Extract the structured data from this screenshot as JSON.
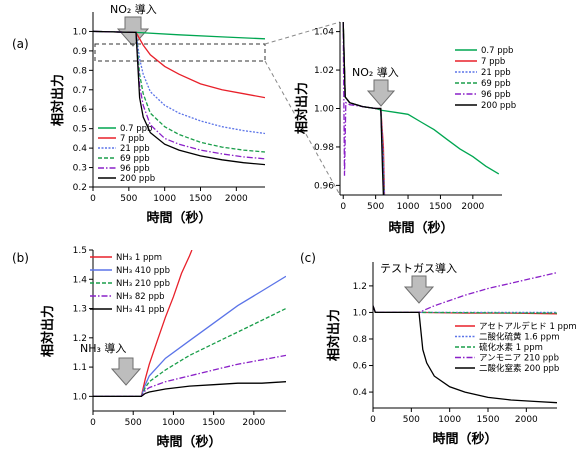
{
  "panel_labels": {
    "a": "(a)",
    "b": "(b)",
    "c": "(c)"
  },
  "annotations": {
    "no2_main": "NO₂ 導入",
    "no2_zoom": "NO₂ 導入",
    "nh3": "NH₃ 導入",
    "testgas": "テストガス導入"
  },
  "colors": {
    "green": "#00a651",
    "red": "#e8202a",
    "blue": "#5b74e8",
    "teal": "#1a9e4a",
    "purple": "#8a20c8",
    "black": "#000000"
  },
  "chart_data": [
    {
      "id": "a_main",
      "type": "line",
      "xlabel": "時間（秒）",
      "ylabel": "相対出力",
      "xlim": [
        0,
        2400
      ],
      "ylim": [
        0.2,
        1.1
      ],
      "xticks": [
        0,
        500,
        1000,
        1500,
        2000
      ],
      "yticks": [
        0.2,
        0.3,
        0.4,
        0.5,
        0.6,
        0.7,
        0.8,
        0.9,
        1.0
      ],
      "injection_time": 600,
      "series": [
        {
          "name": "0.7 ppb",
          "color": "#00a651",
          "dash": "",
          "x": [
            0,
            600,
            1200,
            1800,
            2400
          ],
          "y": [
            1.0,
            0.995,
            0.983,
            0.972,
            0.962
          ]
        },
        {
          "name": "7 ppb",
          "color": "#e8202a",
          "dash": "",
          "x": [
            0,
            600,
            700,
            800,
            1000,
            1200,
            1500,
            1800,
            2100,
            2400
          ],
          "y": [
            1.0,
            0.995,
            0.93,
            0.88,
            0.82,
            0.78,
            0.73,
            0.7,
            0.68,
            0.66
          ]
        },
        {
          "name": "21 ppb",
          "color": "#5b74e8",
          "dash": "2,1.5",
          "x": [
            0,
            600,
            650,
            700,
            800,
            1000,
            1200,
            1500,
            1800,
            2100,
            2400
          ],
          "y": [
            1.0,
            0.995,
            0.86,
            0.78,
            0.69,
            0.62,
            0.58,
            0.54,
            0.51,
            0.49,
            0.475
          ]
        },
        {
          "name": "69 ppb",
          "color": "#1a9e4a",
          "dash": "4,2",
          "x": [
            0,
            600,
            650,
            700,
            800,
            1000,
            1200,
            1500,
            1800,
            2100,
            2400
          ],
          "y": [
            1.0,
            0.995,
            0.78,
            0.68,
            0.58,
            0.51,
            0.47,
            0.43,
            0.405,
            0.39,
            0.38
          ]
        },
        {
          "name": "96 ppb",
          "color": "#8a20c8",
          "dash": "6,2,1.5,2",
          "x": [
            0,
            600,
            650,
            700,
            800,
            1000,
            1200,
            1500,
            1800,
            2100,
            2400
          ],
          "y": [
            1.0,
            0.995,
            0.72,
            0.62,
            0.52,
            0.45,
            0.42,
            0.39,
            0.37,
            0.355,
            0.345
          ]
        },
        {
          "name": "200 ppb",
          "color": "#000000",
          "dash": "",
          "x": [
            0,
            600,
            650,
            700,
            800,
            1000,
            1200,
            1500,
            1800,
            2100,
            2400
          ],
          "y": [
            1.0,
            0.995,
            0.66,
            0.56,
            0.48,
            0.42,
            0.39,
            0.36,
            0.34,
            0.325,
            0.315
          ]
        }
      ]
    },
    {
      "id": "a_zoom",
      "type": "line",
      "xlabel": "時間（秒）",
      "ylabel": "相対出力",
      "xlim": [
        -50,
        2450
      ],
      "ylim": [
        0.955,
        1.045
      ],
      "xticks": [
        0,
        500,
        1000,
        1500,
        2000
      ],
      "yticks": [
        0.96,
        0.98,
        1.0,
        1.02,
        1.04
      ],
      "series": [
        {
          "name": "0.7 ppb",
          "color": "#00a651",
          "dash": "",
          "x": [
            0,
            30,
            100,
            300,
            500,
            600,
            800,
            1000,
            1200,
            1400,
            1600,
            1800,
            2000,
            2200,
            2400
          ],
          "y": [
            1.045,
            1.006,
            1.003,
            1.001,
            1.0,
            0.999,
            0.998,
            0.997,
            0.993,
            0.989,
            0.984,
            0.979,
            0.975,
            0.97,
            0.966
          ]
        },
        {
          "name": "7 ppb",
          "color": "#e8202a",
          "dash": "",
          "x": [
            0,
            30,
            100,
            300,
            500,
            580,
            620,
            640
          ],
          "y": [
            1.045,
            1.006,
            1.003,
            1.001,
            1.0,
            1.0,
            0.98,
            0.95
          ]
        },
        {
          "name": "21 ppb",
          "color": "#5b74e8",
          "dash": "2,1.5",
          "x": [
            0,
            30,
            100,
            300,
            500,
            580,
            620,
            640
          ],
          "y": [
            1.045,
            1.006,
            1.003,
            1.001,
            1.0,
            1.0,
            0.975,
            0.95
          ]
        },
        {
          "name": "69 ppb",
          "color": "#1a9e4a",
          "dash": "4,2",
          "x": [
            0,
            30,
            100,
            300,
            500,
            580,
            615,
            635
          ],
          "y": [
            1.045,
            1.006,
            1.003,
            1.001,
            1.0,
            1.0,
            0.97,
            0.95
          ]
        },
        {
          "name": "96 ppb",
          "color": "#8a20c8",
          "dash": "6,2,1.5,2",
          "x": [
            0,
            20,
            40,
            100,
            300,
            500,
            580,
            610,
            630
          ],
          "y": [
            1.045,
            0.965,
            1.003,
            1.002,
            1.001,
            1.0,
            1.0,
            0.97,
            0.95
          ]
        },
        {
          "name": "200 ppb",
          "color": "#000000",
          "dash": "",
          "x": [
            0,
            30,
            100,
            300,
            500,
            580,
            605,
            625
          ],
          "y": [
            1.045,
            1.006,
            1.003,
            1.001,
            1.0,
            1.0,
            0.97,
            0.95
          ]
        }
      ]
    },
    {
      "id": "b",
      "type": "line",
      "xlabel": "時間（秒）",
      "ylabel": "相対出力",
      "xlim": [
        0,
        2400
      ],
      "ylim": [
        0.95,
        1.5
      ],
      "xticks": [
        0,
        500,
        1000,
        1500,
        2000
      ],
      "yticks": [
        1.0,
        1.1,
        1.2,
        1.3,
        1.4,
        1.5
      ],
      "series": [
        {
          "name": "NH₃ 1 ppm",
          "color": "#e8202a",
          "dash": "",
          "x": [
            0,
            600,
            650,
            700,
            800,
            900,
            1000,
            1100,
            1200,
            1230
          ],
          "y": [
            1.0,
            1.0,
            1.06,
            1.11,
            1.19,
            1.27,
            1.34,
            1.42,
            1.48,
            1.5
          ]
        },
        {
          "name": "NH₃ 410 ppb",
          "color": "#5b74e8",
          "dash": "",
          "x": [
            0,
            600,
            650,
            700,
            900,
            1200,
            1500,
            1800,
            2100,
            2400
          ],
          "y": [
            1.0,
            1.0,
            1.04,
            1.07,
            1.13,
            1.19,
            1.25,
            1.31,
            1.36,
            1.41
          ]
        },
        {
          "name": "NH₃ 210 ppb",
          "color": "#1a9e4a",
          "dash": "4,2",
          "x": [
            0,
            600,
            650,
            700,
            900,
            1200,
            1500,
            1800,
            2100,
            2400
          ],
          "y": [
            1.0,
            1.0,
            1.03,
            1.05,
            1.09,
            1.14,
            1.18,
            1.22,
            1.26,
            1.3
          ]
        },
        {
          "name": "NH₃ 82 ppb",
          "color": "#8a20c8",
          "dash": "6,2,1.5,2",
          "x": [
            0,
            600,
            650,
            700,
            900,
            1200,
            1500,
            1800,
            2100,
            2400
          ],
          "y": [
            1.0,
            1.0,
            1.02,
            1.03,
            1.05,
            1.07,
            1.09,
            1.11,
            1.125,
            1.14
          ]
        },
        {
          "name": "NH₃ 41 ppb",
          "color": "#000000",
          "dash": "",
          "x": [
            0,
            600,
            650,
            700,
            900,
            1200,
            1500,
            1800,
            2100,
            2400
          ],
          "y": [
            1.0,
            1.0,
            1.01,
            1.015,
            1.025,
            1.035,
            1.04,
            1.045,
            1.045,
            1.05
          ]
        }
      ]
    },
    {
      "id": "c",
      "type": "line",
      "xlabel": "時間（秒）",
      "ylabel": "相対出力",
      "xlim": [
        0,
        2400
      ],
      "ylim": [
        0.28,
        1.38
      ],
      "xticks": [
        0,
        500,
        1000,
        1500,
        2000
      ],
      "yticks": [
        0.4,
        0.6,
        0.8,
        1.0,
        1.2
      ],
      "series": [
        {
          "name": "アセトアルデヒド 1 ppm",
          "color": "#e8202a",
          "dash": "",
          "x": [
            0,
            30,
            100,
            600,
            1200,
            1800,
            2400
          ],
          "y": [
            1.05,
            1.0,
            1.0,
            1.0,
            0.995,
            0.995,
            0.99
          ]
        },
        {
          "name": "二酸化硫黄 1.6 ppm",
          "color": "#5b74e8",
          "dash": "2,1.5",
          "x": [
            0,
            30,
            100,
            600,
            1200,
            1800,
            2400
          ],
          "y": [
            1.05,
            1.0,
            1.0,
            1.0,
            1.0,
            1.0,
            1.0
          ]
        },
        {
          "name": "硫化水素 1 ppm",
          "color": "#1a9e4a",
          "dash": "4,2",
          "x": [
            0,
            30,
            100,
            600,
            1200,
            1800,
            2400
          ],
          "y": [
            1.05,
            1.0,
            1.0,
            1.0,
            0.998,
            0.996,
            0.995
          ]
        },
        {
          "name": "アンモニア 210 ppb",
          "color": "#8a20c8",
          "dash": "6,2,1.5,2",
          "x": [
            0,
            30,
            100,
            600,
            800,
            1000,
            1200,
            1500,
            1800,
            2100,
            2400
          ],
          "y": [
            1.05,
            1.0,
            1.0,
            1.0,
            1.05,
            1.09,
            1.13,
            1.18,
            1.22,
            1.26,
            1.3
          ]
        },
        {
          "name": "二酸化窒素 200 ppb",
          "color": "#000000",
          "dash": "",
          "x": [
            0,
            30,
            100,
            600,
            650,
            700,
            800,
            1000,
            1200,
            1500,
            1800,
            2100,
            2400
          ],
          "y": [
            1.05,
            1.0,
            1.0,
            1.0,
            0.72,
            0.62,
            0.52,
            0.44,
            0.4,
            0.36,
            0.34,
            0.33,
            0.32
          ]
        }
      ]
    }
  ]
}
